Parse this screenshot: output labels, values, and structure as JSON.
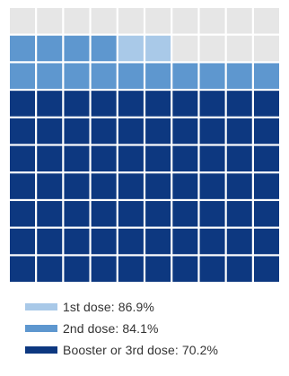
{
  "chart_data": {
    "type": "waffle",
    "grid": {
      "rows": 10,
      "cols": 10
    },
    "series": [
      {
        "name": "1st dose",
        "value": 86.9,
        "color": "#a9c9e8"
      },
      {
        "name": "2nd dose",
        "value": 84.1,
        "color": "#5e97cf"
      },
      {
        "name": "Booster or 3rd dose",
        "value": 70.2,
        "color": "#0d3880"
      }
    ],
    "empty_color": "#e6e6e6",
    "legend_position": "bottom",
    "legend": [
      {
        "label": "1st dose: 86.9%",
        "color": "#a9c9e8"
      },
      {
        "label": "2nd dose: 84.1%",
        "color": "#5e97cf"
      },
      {
        "label": "Booster or 3rd dose: 70.2%",
        "color": "#0d3880"
      }
    ]
  }
}
